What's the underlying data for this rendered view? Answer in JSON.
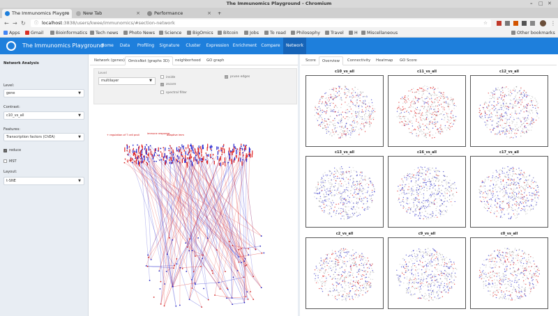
{
  "window": {
    "title": "The Immunomics Playground - Chromium"
  },
  "browser": {
    "tabs": [
      {
        "label": "The Immunomics Playgro",
        "active": true,
        "favicon_color": "#1e7fdc"
      },
      {
        "label": "New Tab",
        "active": false,
        "favicon_color": "#aaaaaa"
      },
      {
        "label": "Performance",
        "active": false,
        "favicon_color": "#888888"
      }
    ],
    "url_host": "localhost",
    "url_rest": ":3838/users/kwee/immunomics/#section-network",
    "bookmarks": [
      {
        "label": "Apps",
        "color": "#4285f4"
      },
      {
        "label": "Gmail",
        "color": "#d93025"
      },
      {
        "label": "Bioinformatics",
        "color": "#777777"
      },
      {
        "label": "Tech news",
        "color": "#777777"
      },
      {
        "label": "Photo News",
        "color": "#777777"
      },
      {
        "label": "Science",
        "color": "#777777"
      },
      {
        "label": "BigOmics",
        "color": "#777777"
      },
      {
        "label": "Bitcoin",
        "color": "#777777"
      },
      {
        "label": "Jobs",
        "color": "#777777"
      },
      {
        "label": "To read",
        "color": "#777777"
      },
      {
        "label": "Philosophy",
        "color": "#777777"
      },
      {
        "label": "Travel",
        "color": "#777777"
      },
      {
        "label": "H",
        "color": "#777777"
      },
      {
        "label": "Miscellaneous",
        "color": "#777777"
      }
    ],
    "other_bookmarks": "Other bookmarks"
  },
  "app": {
    "title": "The Immunomics Playground",
    "accent": "#1e7fdc",
    "nav": [
      {
        "label": "Home",
        "active": false
      },
      {
        "label": "Data",
        "active": false
      },
      {
        "label": "Profiling",
        "active": false
      },
      {
        "label": "Signature",
        "active": false
      },
      {
        "label": "Cluster",
        "active": false
      },
      {
        "label": "Expression",
        "active": false
      },
      {
        "label": "Enrichment",
        "active": false
      },
      {
        "label": "Compare",
        "active": false
      },
      {
        "label": "Network",
        "active": true
      }
    ]
  },
  "sidebar": {
    "heading": "Network Analysis",
    "level_label": "Level:",
    "level_value": "gene",
    "contrast_label": "Contrast:",
    "contrast_value": "c10_vs_all",
    "features_label": "Features:",
    "features_value": "Transcription factors (ChEA)",
    "reduce_label": "reduce",
    "reduce_checked": true,
    "mst_label": "MST",
    "mst_checked": false,
    "layout_label": "Layout:",
    "layout_value": "t-SNE"
  },
  "middle": {
    "tabs": [
      {
        "label": "Network (genes)",
        "active": false
      },
      {
        "label": "OmicsNet (graphs 3D)",
        "active": true
      },
      {
        "label": "neighborhood",
        "active": false
      },
      {
        "label": "GO graph",
        "active": false
      }
    ],
    "options": {
      "level_label": "Level",
      "level_value": "multilayer",
      "inside_label": "inside",
      "inside_checked": false,
      "zoom_label": "zscore",
      "zoom_checked": true,
      "spectral_label": "spectral filter",
      "spectral_checked": false,
      "prune_label": "prune edges",
      "prune_checked": true
    },
    "graph_labels": [
      "+ regulation of T cell proli",
      "immune response",
      "adaptive imm"
    ]
  },
  "right": {
    "tabs": [
      {
        "label": "Score",
        "active": false
      },
      {
        "label": "Overview",
        "active": true
      },
      {
        "label": "Connectivity",
        "active": false
      },
      {
        "label": "Heatmap",
        "active": false
      },
      {
        "label": "GO Score",
        "active": false
      }
    ],
    "plots": [
      {
        "title": "c10_vs_all",
        "seed": 11,
        "red": 0.55
      },
      {
        "title": "c11_vs_all",
        "seed": 23,
        "red": 0.75
      },
      {
        "title": "c12_vs_all",
        "seed": 37,
        "red": 0.35
      },
      {
        "title": "c13_vs_all",
        "seed": 41,
        "red": 0.2
      },
      {
        "title": "c16_vs_all",
        "seed": 53,
        "red": 0.15
      },
      {
        "title": "c17_vs_all",
        "seed": 67,
        "red": 0.3
      },
      {
        "title": "c2_vs_all",
        "seed": 71,
        "red": 0.4
      },
      {
        "title": "c9_vs_all",
        "seed": 83,
        "red": 0.25
      },
      {
        "title": "c0_vs_all",
        "seed": 97,
        "red": 0.45
      }
    ]
  }
}
